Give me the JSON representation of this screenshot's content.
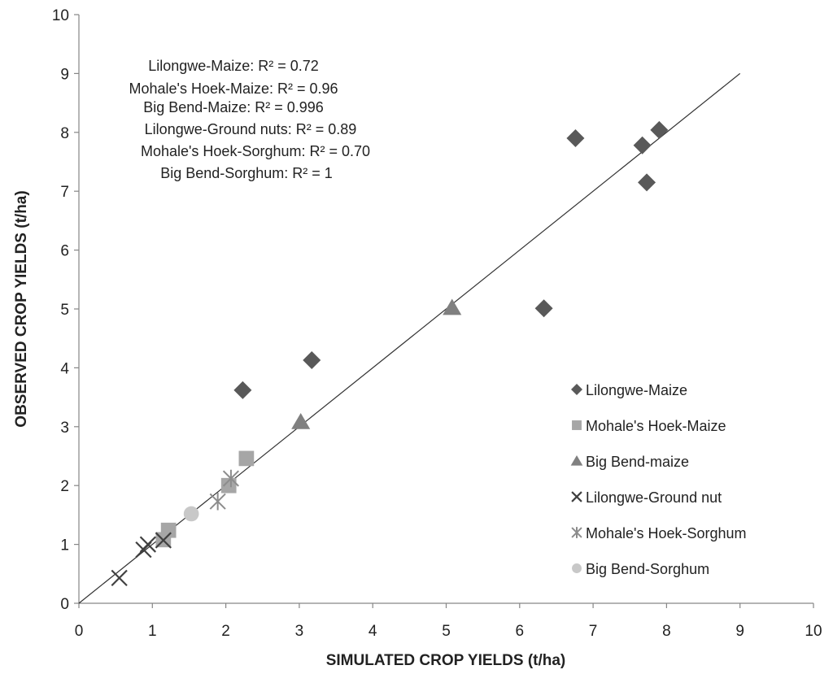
{
  "chart_data": {
    "type": "scatter",
    "xlabel": "SIMULATED CROP YIELDS (t/ha)",
    "ylabel": "OBSERVED CROP YIELDS (t/ha)",
    "xlim": [
      0,
      10
    ],
    "ylim": [
      0,
      10
    ],
    "x_ticks": [
      "0",
      "1",
      "2",
      "3",
      "4",
      "5",
      "6",
      "7",
      "8",
      "9",
      "10"
    ],
    "y_ticks": [
      "0",
      "1",
      "2",
      "3",
      "4",
      "5",
      "6",
      "7",
      "8",
      "9",
      "10"
    ],
    "grid": false,
    "legend_position": "bottom-right",
    "trendline": {
      "x": [
        0,
        9
      ],
      "y": [
        0,
        9
      ]
    },
    "annotations": [
      "Lilongwe-Maize: R² = 0.72",
      "Mohale's Hoek-Maize: R² = 0.96",
      "Big Bend-Maize: R² = 0.996",
      "Lilongwe-Ground nuts: R² = 0.89",
      "Mohale's Hoek-Sorghum: R² = 0.70",
      "Big Bend-Sorghum: R² = 1"
    ],
    "series": [
      {
        "name": "Lilongwe-Maize",
        "marker": "diamond",
        "color": "#595959",
        "points": [
          [
            2.23,
            3.62
          ],
          [
            3.17,
            4.13
          ],
          [
            6.33,
            5.01
          ],
          [
            6.76,
            7.9
          ],
          [
            7.67,
            7.78
          ],
          [
            7.73,
            7.15
          ],
          [
            7.9,
            8.04
          ]
        ]
      },
      {
        "name": "Mohale's Hoek-Maize",
        "marker": "square",
        "color": "#a6a6a6",
        "points": [
          [
            1.15,
            1.08
          ],
          [
            1.22,
            1.24
          ],
          [
            2.04,
            2.0
          ],
          [
            2.28,
            2.46
          ]
        ]
      },
      {
        "name": "Big Bend-maize",
        "marker": "triangle",
        "color": "#808080",
        "points": [
          [
            3.02,
            3.08
          ],
          [
            5.08,
            5.02
          ]
        ]
      },
      {
        "name": "Lilongwe-Ground nut",
        "marker": "x",
        "color": "#404040",
        "points": [
          [
            0.55,
            0.43
          ],
          [
            0.88,
            0.91
          ],
          [
            0.94,
            1.0
          ],
          [
            1.15,
            1.07
          ]
        ]
      },
      {
        "name": "Mohale's Hoek-Sorghum",
        "marker": "asterisk",
        "color": "#8c8c8c",
        "points": [
          [
            1.89,
            1.73
          ],
          [
            2.07,
            2.12
          ]
        ]
      },
      {
        "name": "Big Bend-Sorghum",
        "marker": "circle",
        "color": "#c8c8c8",
        "points": [
          [
            1.53,
            1.52
          ]
        ]
      }
    ]
  }
}
